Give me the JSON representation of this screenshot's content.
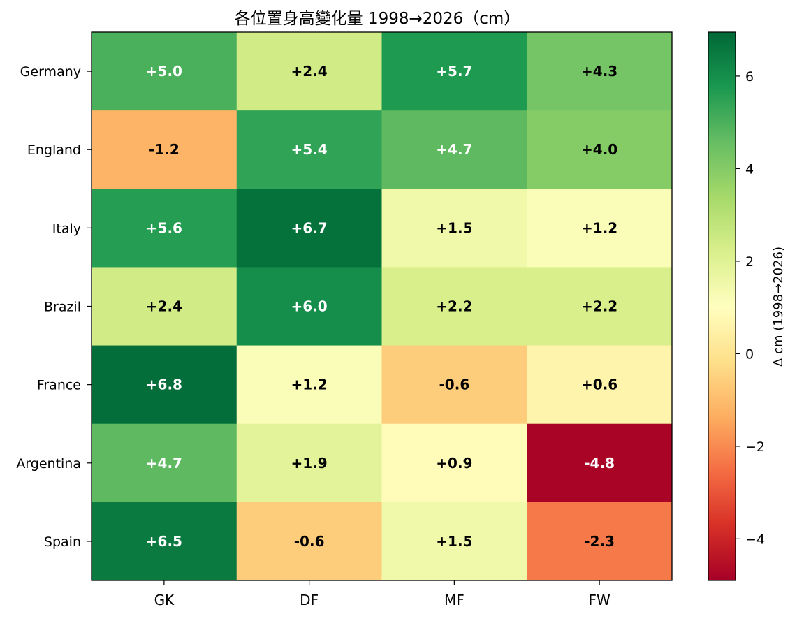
{
  "chart_data": {
    "type": "heatmap",
    "title": "各位置身高變化量 1998→2026（cm）",
    "x_categories": [
      "GK",
      "DF",
      "MF",
      "FW"
    ],
    "y_categories": [
      "Germany",
      "England",
      "Italy",
      "Brazil",
      "France",
      "Argentina",
      "Spain"
    ],
    "values": [
      [
        5.0,
        2.4,
        5.7,
        4.3
      ],
      [
        -1.2,
        5.4,
        4.7,
        4.0
      ],
      [
        5.6,
        6.7,
        1.5,
        1.2
      ],
      [
        2.4,
        6.0,
        2.2,
        2.2
      ],
      [
        6.8,
        1.2,
        -0.6,
        0.6
      ],
      [
        4.7,
        1.9,
        0.9,
        -4.8
      ],
      [
        6.5,
        -0.6,
        1.5,
        -2.3
      ]
    ],
    "cell_labels": [
      [
        "+5.0",
        "+2.4",
        "+5.7",
        "+4.3"
      ],
      [
        "-1.2",
        "+5.4",
        "+4.7",
        "+4.0"
      ],
      [
        "+5.6",
        "+6.7",
        "+1.5",
        "+1.2"
      ],
      [
        "+2.4",
        "+6.0",
        "+2.2",
        "+2.2"
      ],
      [
        "+6.8",
        "+1.2",
        "-0.6",
        "+0.6"
      ],
      [
        "+4.7",
        "+1.9",
        "+0.9",
        "-4.8"
      ],
      [
        "+6.5",
        "-0.6",
        "+1.5",
        "-2.3"
      ]
    ],
    "colormap": "RdYlGn",
    "vmin": -4.9,
    "vmax": 6.95,
    "colorbar": {
      "label": "Δ cm (1998→2026)",
      "ticks": [
        6,
        4,
        2,
        0,
        -2,
        -4
      ],
      "tick_labels": [
        "6",
        "4",
        "2",
        "0",
        "−2",
        "−4"
      ]
    },
    "grid": false
  }
}
